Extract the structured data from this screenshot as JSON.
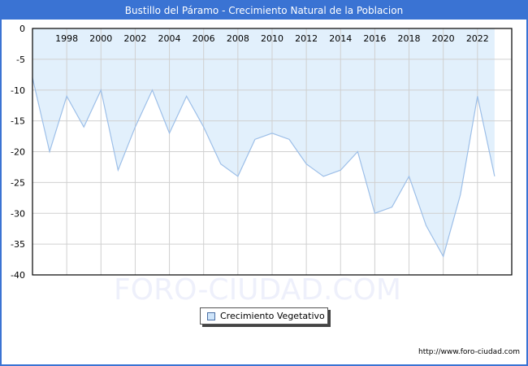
{
  "window": {
    "title": "Bustillo del Páramo - Crecimiento Natural de la Poblacion"
  },
  "legend": {
    "label": "Crecimiento Vegetativo",
    "swatch_color": "#cfe5fa"
  },
  "footer": {
    "url": "http://www.foro-ciudad.com"
  },
  "watermark": "FORO-CIUDAD.COM",
  "colors": {
    "frame": "#3a73d3",
    "fill": "#e2f0fc",
    "line": "#9dbfe8",
    "grid": "#d0d0d0"
  },
  "chart_data": {
    "type": "area",
    "title": "Bustillo del Páramo - Crecimiento Natural de la Poblacion",
    "xlabel": "",
    "ylabel": "",
    "x": [
      1996,
      1997,
      1998,
      1999,
      2000,
      2001,
      2002,
      2003,
      2004,
      2005,
      2006,
      2007,
      2008,
      2009,
      2010,
      2011,
      2012,
      2013,
      2014,
      2015,
      2016,
      2017,
      2018,
      2019,
      2020,
      2021,
      2022,
      2023
    ],
    "series": [
      {
        "name": "Crecimiento Vegetativo",
        "values": [
          -8,
          -20,
          -11,
          -16,
          -10,
          -23,
          -16,
          -10,
          -17,
          -11,
          -16,
          -22,
          -24,
          -18,
          -17,
          -18,
          -22,
          -24,
          -23,
          -20,
          -30,
          -29,
          -24,
          -32,
          -37,
          -27,
          -11,
          -24
        ]
      }
    ],
    "xticks": [
      "1998",
      "2000",
      "2002",
      "2004",
      "2006",
      "2008",
      "2010",
      "2012",
      "2014",
      "2016",
      "2018",
      "2020",
      "2022"
    ],
    "yticks": [
      "0",
      "-5",
      "-10",
      "-15",
      "-20",
      "-25",
      "-30",
      "-35",
      "-40"
    ],
    "ylim": [
      -40,
      0
    ],
    "grid": true,
    "legend_position": "bottom-center"
  }
}
